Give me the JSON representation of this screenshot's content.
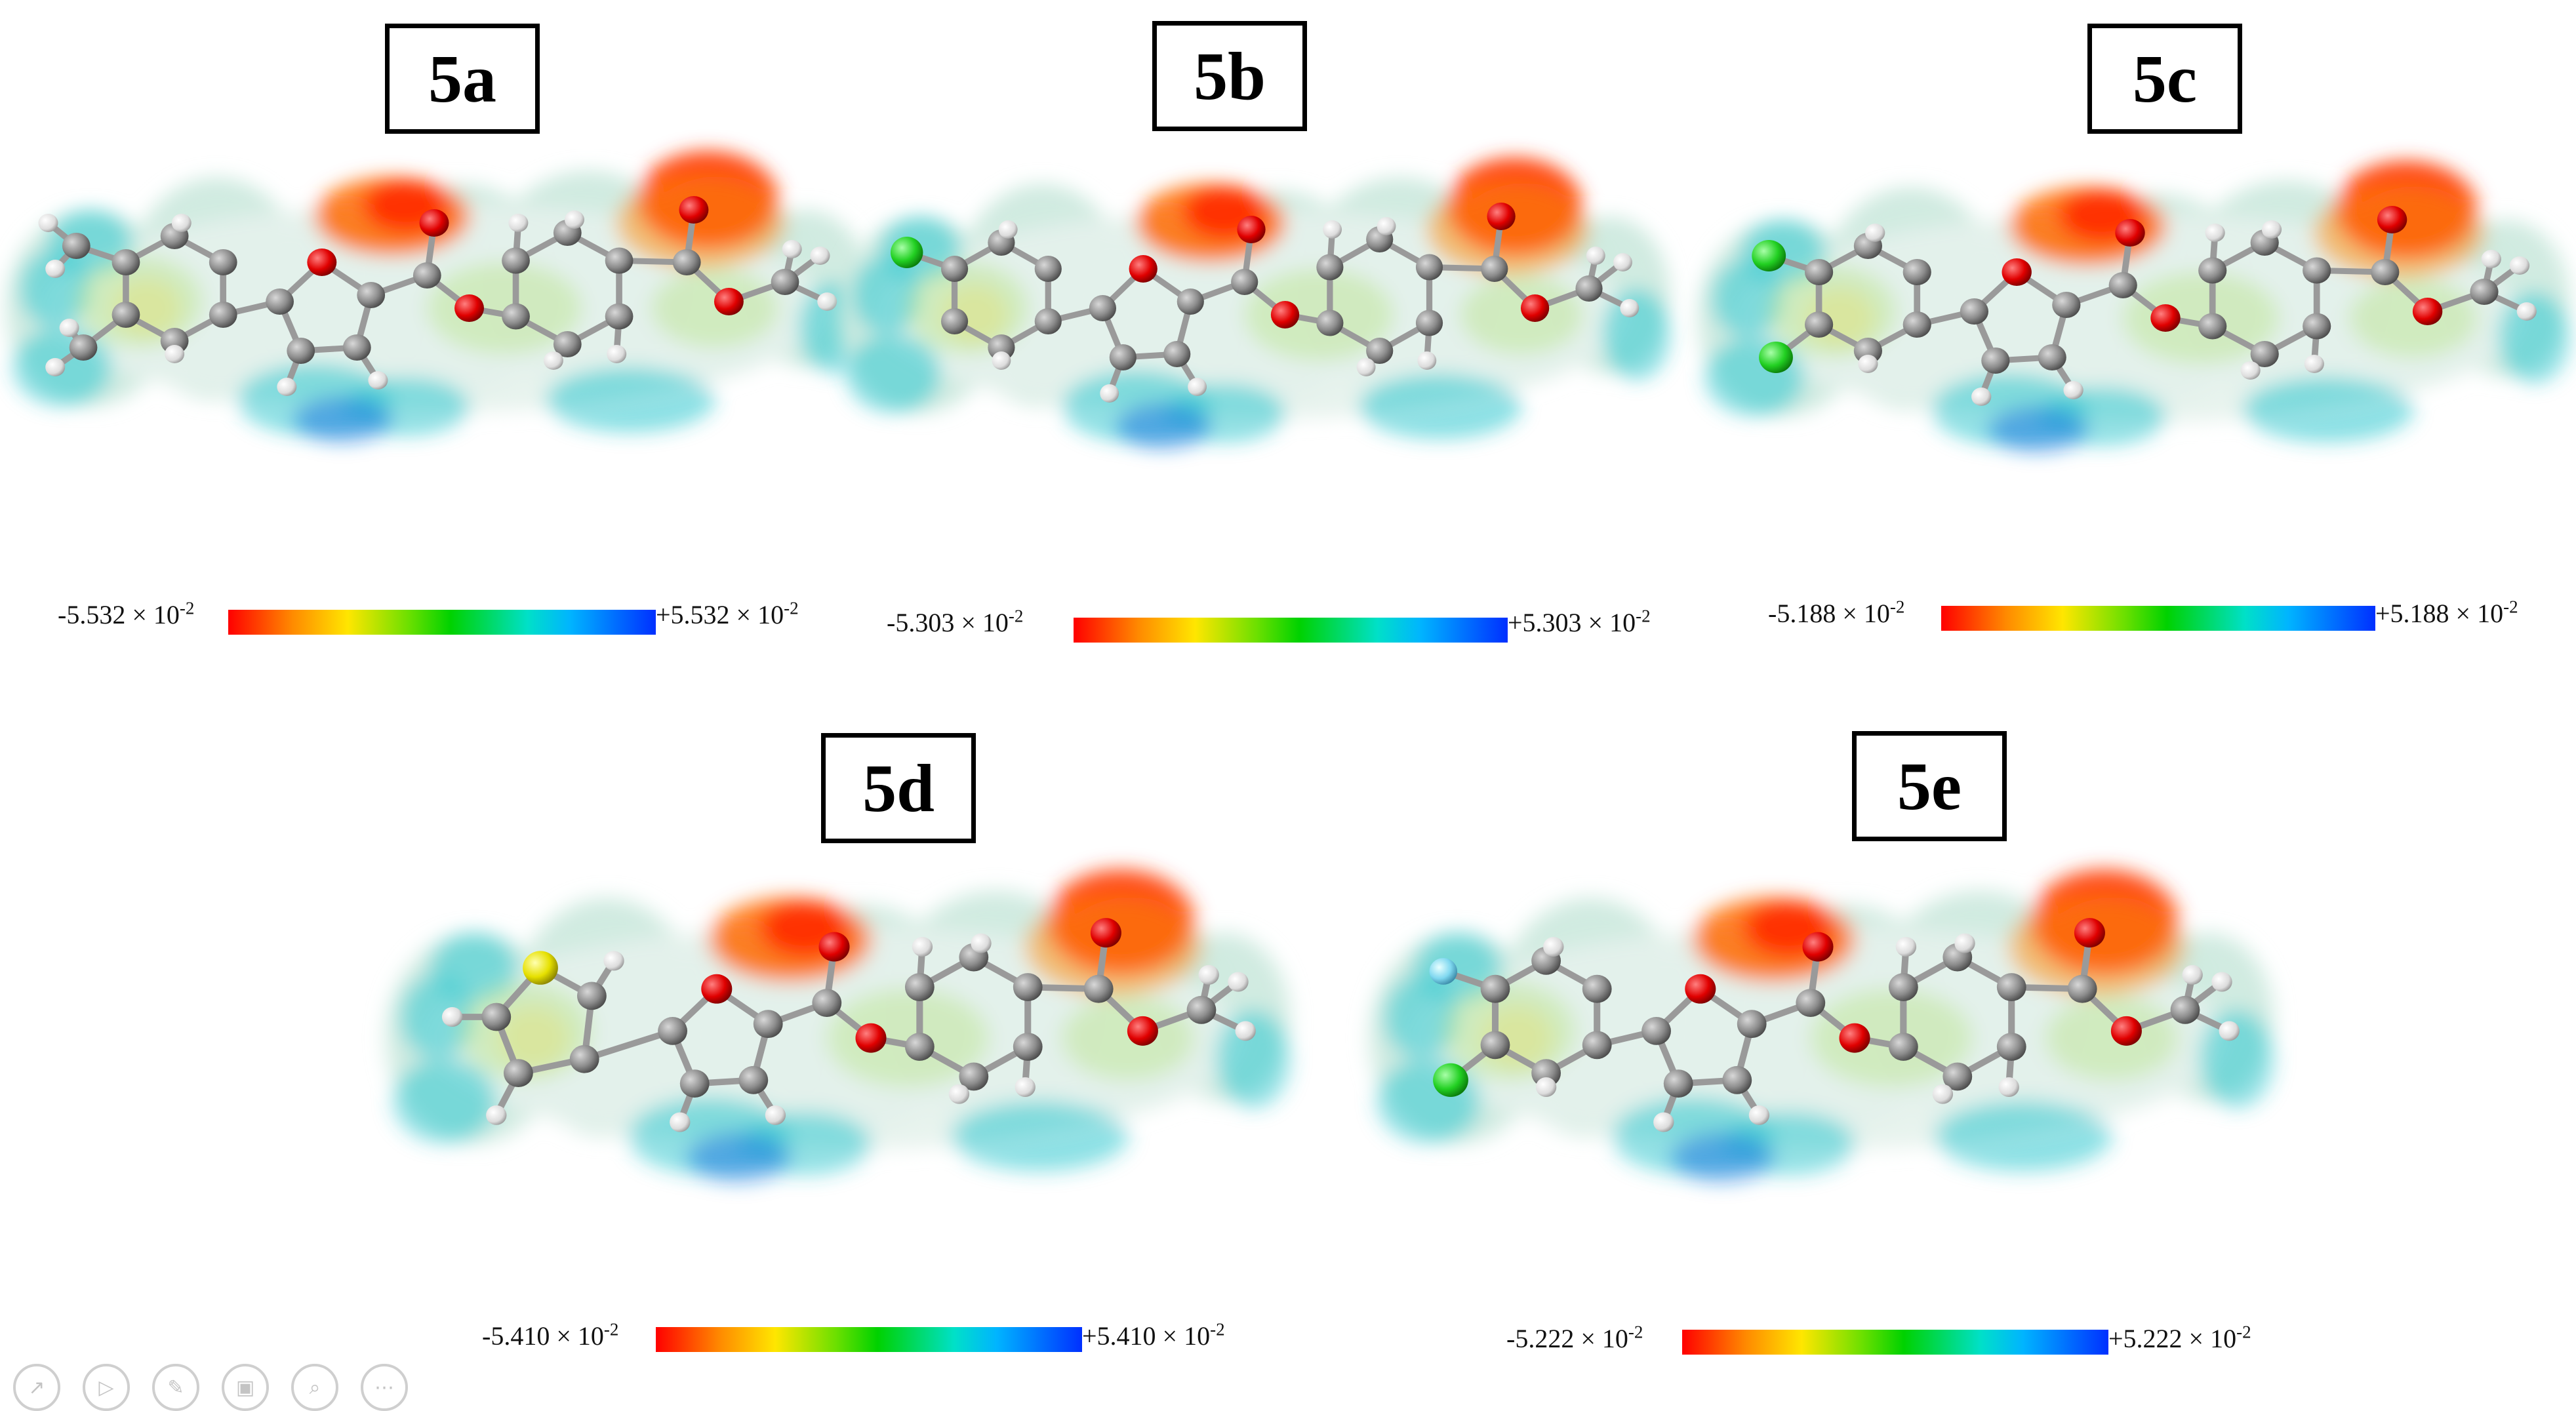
{
  "panels": [
    {
      "id": "5a",
      "label": "5a",
      "scale_min": "-5.532 × 10",
      "scale_max": "+5.532 × 10",
      "exponent": "-2",
      "subs": [
        "methyl",
        "methyl"
      ],
      "atoms_label": "5a molecule"
    },
    {
      "id": "5b",
      "label": "5b",
      "scale_min": "-5.303 × 10",
      "scale_max": "+5.303 × 10",
      "exponent": "-2",
      "subs": [
        "chloro"
      ],
      "atoms_label": "5b molecule"
    },
    {
      "id": "5c",
      "label": "5c",
      "scale_min": "-5.188 × 10",
      "scale_max": "+5.188 × 10",
      "exponent": "-2",
      "subs": [
        "chloro",
        "chloro"
      ],
      "atoms_label": "5c molecule"
    },
    {
      "id": "5d",
      "label": "5d",
      "scale_min": "-5.410 × 10",
      "scale_max": "+5.410 × 10",
      "exponent": "-2",
      "subs": [
        "thiophene"
      ],
      "atoms_label": "5d molecule"
    },
    {
      "id": "5e",
      "label": "5e",
      "scale_min": "-5.222 × 10",
      "scale_max": "+5.222 × 10",
      "exponent": "-2",
      "subs": [
        "fluoro",
        "chloro"
      ],
      "atoms_label": "5e molecule"
    }
  ],
  "colors": {
    "carbon": "#8c8c8c",
    "hydrogen": "#e8e8e8",
    "oxygen": "#e00000",
    "chlorine": "#22d022",
    "fluorine": "#7fd8f0",
    "sulfur": "#e6e000"
  },
  "toolbar_icons": [
    "arrow-icon",
    "play-icon",
    "pen-icon",
    "image-icon",
    "zoom-icon",
    "more-icon"
  ]
}
